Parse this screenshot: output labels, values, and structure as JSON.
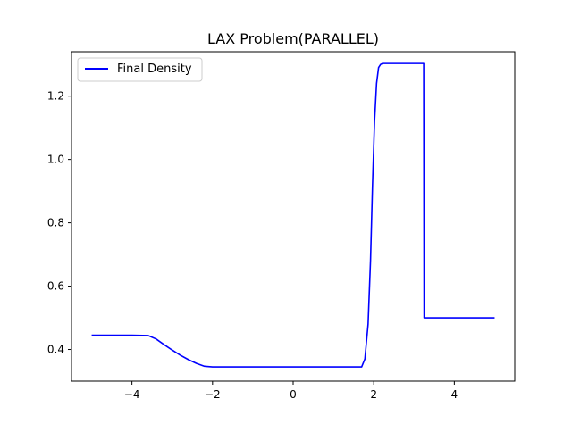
{
  "chart_data": {
    "type": "line",
    "title": "LAX Problem(PARALLEL)",
    "xlabel": "",
    "ylabel": "",
    "xlim": [
      -5.5,
      5.5
    ],
    "ylim": [
      0.3,
      1.34
    ],
    "xticks": [
      -4,
      -2,
      0,
      2,
      4
    ],
    "xtick_labels": [
      "−4",
      "−2",
      "0",
      "2",
      "4"
    ],
    "yticks": [
      0.4,
      0.6,
      0.8,
      1.0,
      1.2
    ],
    "ytick_labels": [
      "0.4",
      "0.6",
      "0.8",
      "1.0",
      "1.2"
    ],
    "grid": false,
    "legend_position": "upper left",
    "series": [
      {
        "name": "Final Density",
        "color": "#0000ff",
        "x": [
          -5.0,
          -4.0,
          -3.6,
          -3.4,
          -3.2,
          -3.0,
          -2.8,
          -2.6,
          -2.4,
          -2.2,
          -2.0,
          -1.9,
          0.0,
          1.7,
          1.78,
          1.86,
          1.92,
          1.97,
          2.02,
          2.07,
          2.12,
          2.17,
          2.22,
          2.3,
          3.24,
          3.25,
          5.0
        ],
        "y": [
          0.445,
          0.445,
          0.444,
          0.433,
          0.415,
          0.398,
          0.382,
          0.368,
          0.356,
          0.347,
          0.345,
          0.345,
          0.345,
          0.345,
          0.37,
          0.48,
          0.68,
          0.92,
          1.12,
          1.24,
          1.29,
          1.3,
          1.303,
          1.303,
          1.303,
          0.5,
          0.5
        ]
      }
    ]
  }
}
